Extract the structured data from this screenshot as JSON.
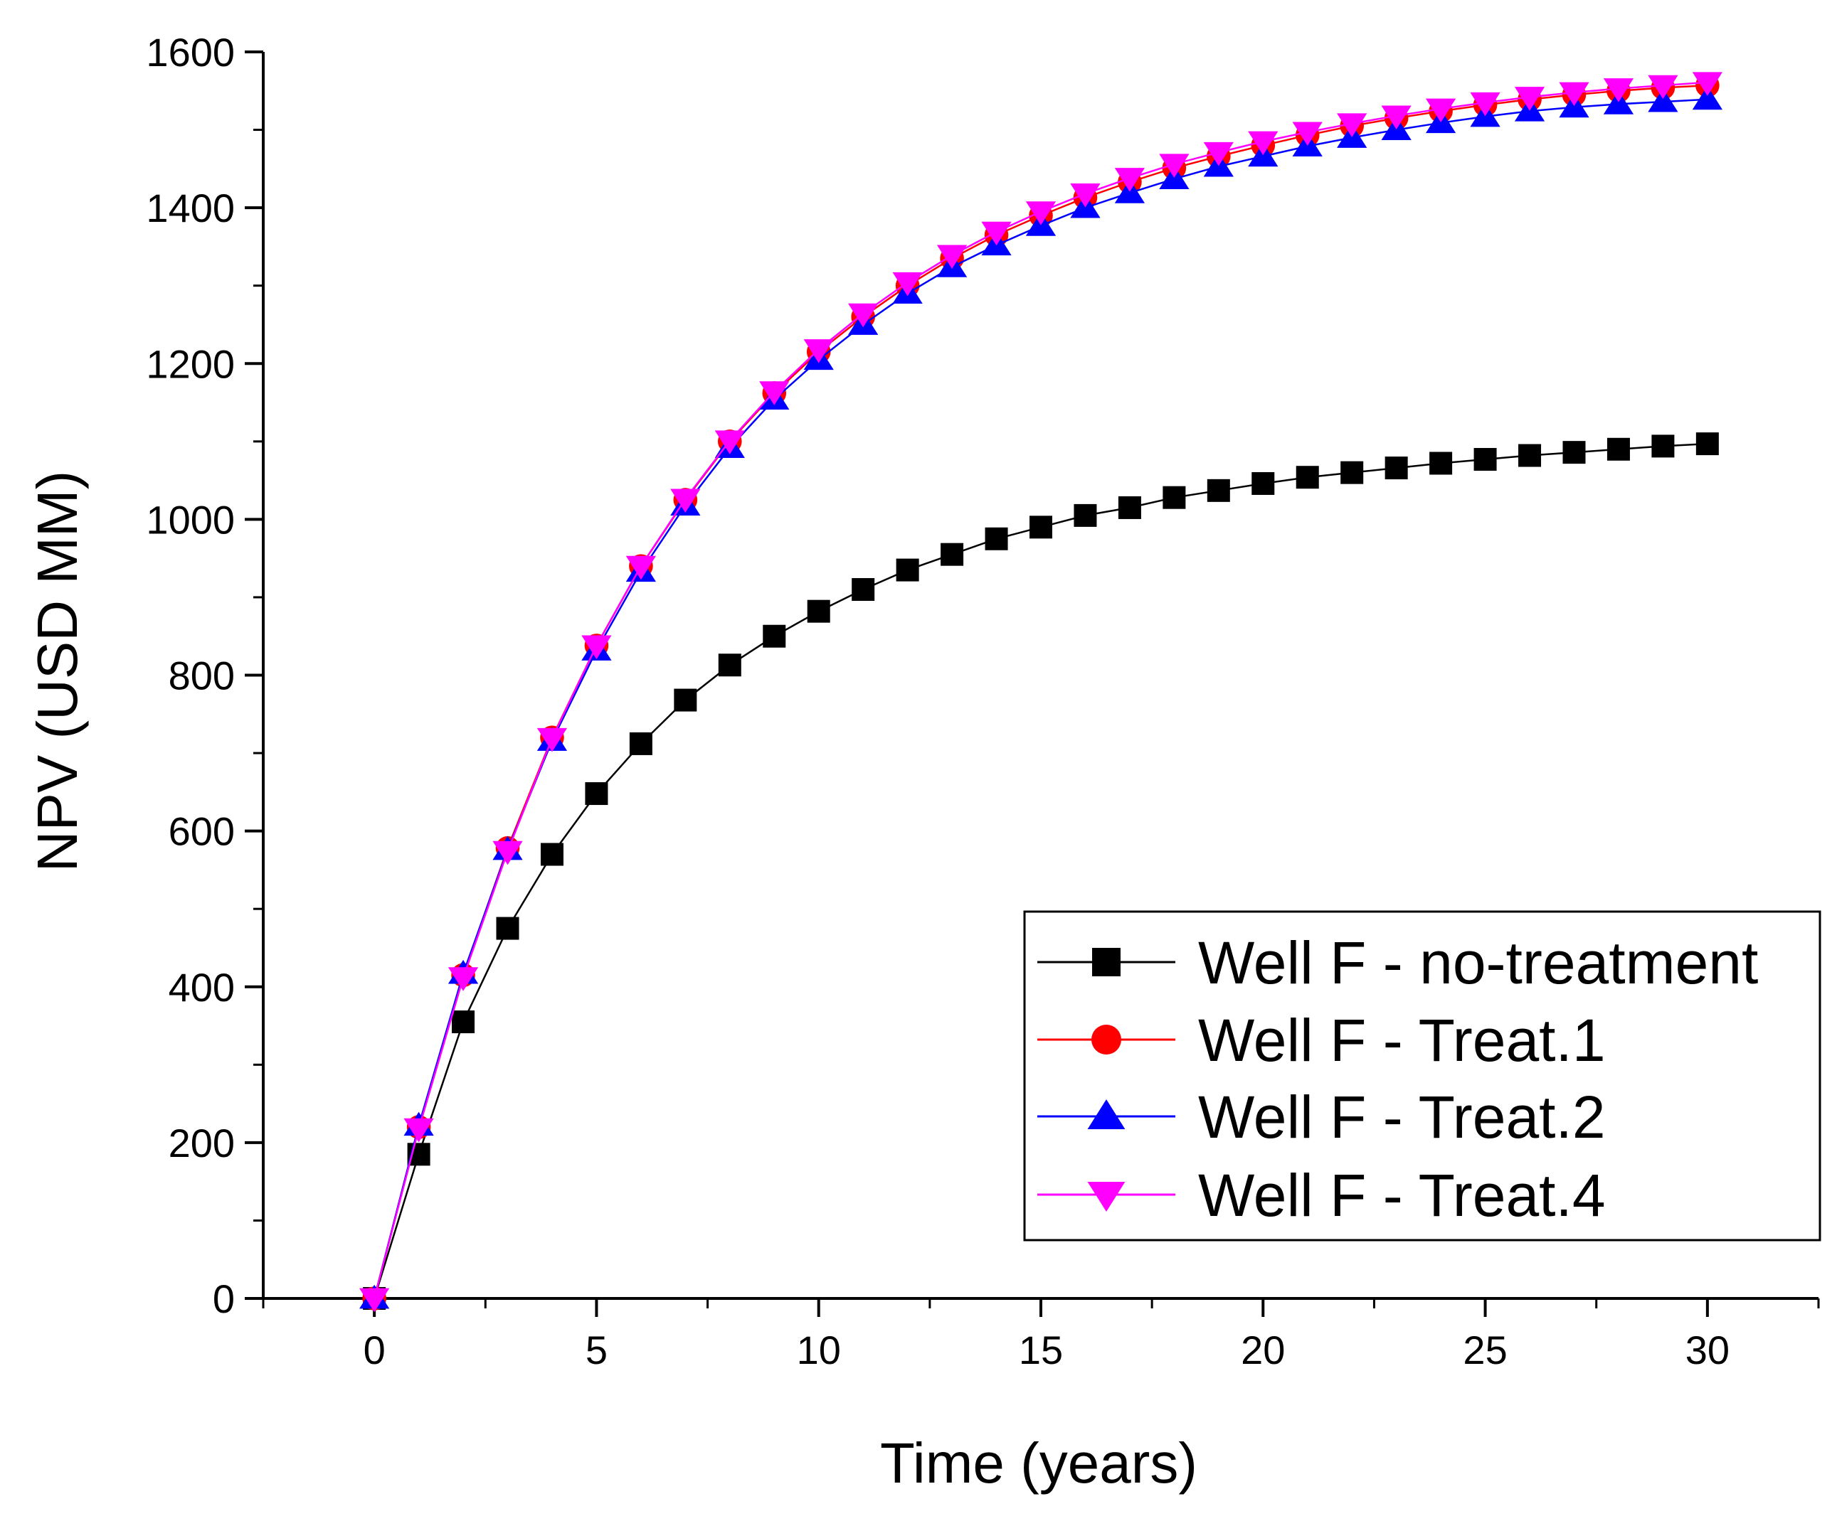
{
  "chart_data": {
    "type": "line",
    "title": "",
    "xlabel": "Time (years)",
    "ylabel": "NPV (USD MM)",
    "xlim": [
      -2.5,
      32.5
    ],
    "ylim": [
      0,
      1600
    ],
    "xticks": [
      0,
      5,
      10,
      15,
      20,
      25,
      30
    ],
    "yticks": [
      0,
      200,
      400,
      600,
      800,
      1000,
      1200,
      1400,
      1600
    ],
    "grid": false,
    "legend_position": "bottom-right",
    "x": [
      0,
      1,
      2,
      3,
      4,
      5,
      6,
      7,
      8,
      9,
      10,
      11,
      12,
      13,
      14,
      15,
      16,
      17,
      18,
      19,
      20,
      21,
      22,
      23,
      24,
      25,
      26,
      27,
      28,
      29,
      30
    ],
    "series": [
      {
        "name": "Well F - no-treatment",
        "color": "#000000",
        "marker": "square",
        "values": [
          0,
          185,
          355,
          475,
          570,
          648,
          712,
          768,
          813,
          850,
          882,
          910,
          935,
          955,
          975,
          990,
          1005,
          1015,
          1028,
          1037,
          1046,
          1054,
          1060,
          1066,
          1072,
          1077,
          1082,
          1086,
          1090,
          1094,
          1097
        ]
      },
      {
        "name": "Well F - Treat.1",
        "color": "#ff0000",
        "marker": "circle",
        "values": [
          0,
          220,
          415,
          578,
          720,
          838,
          940,
          1025,
          1100,
          1162,
          1215,
          1260,
          1300,
          1335,
          1365,
          1390,
          1413,
          1433,
          1451,
          1466,
          1480,
          1493,
          1505,
          1515,
          1524,
          1532,
          1539,
          1545,
          1550,
          1554,
          1557
        ]
      },
      {
        "name": "Well F - Treat.2",
        "color": "#0000ff",
        "marker": "triangle-up",
        "values": [
          0,
          222,
          417,
          576,
          716,
          832,
          933,
          1018,
          1092,
          1154,
          1205,
          1250,
          1290,
          1324,
          1352,
          1377,
          1400,
          1419,
          1437,
          1453,
          1466,
          1479,
          1490,
          1500,
          1509,
          1517,
          1524,
          1529,
          1533,
          1536,
          1539
        ]
      },
      {
        "name": "Well F - Treat.4",
        "color": "#ff00ff",
        "marker": "triangle-down",
        "values": [
          0,
          218,
          412,
          574,
          719,
          838,
          940,
          1026,
          1101,
          1164,
          1218,
          1264,
          1304,
          1339,
          1369,
          1395,
          1418,
          1438,
          1456,
          1471,
          1485,
          1497,
          1508,
          1518,
          1527,
          1535,
          1542,
          1548,
          1553,
          1557,
          1561
        ]
      }
    ]
  }
}
